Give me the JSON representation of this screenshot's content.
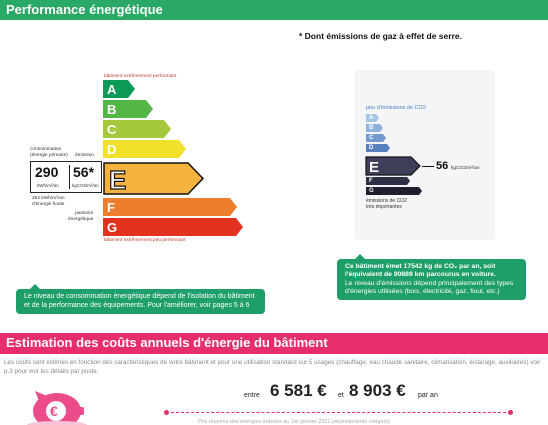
{
  "headers": {
    "energy": "Performance énergétique",
    "costs": "Estimation des coûts annuels d'énergie du bâtiment"
  },
  "footnote": "* Dont émissions de gaz à effet de serre.",
  "energy_label": {
    "top_text": "bâtiment extrêmement performant",
    "bottom_text": "bâtiment extrêmement peu performant",
    "classes": [
      "A",
      "B",
      "C",
      "D",
      "E",
      "F",
      "G"
    ],
    "current_class": "E",
    "consumption_label_1": "consommation",
    "consumption_label_2": "(énergie primaire)",
    "emission_label": "émission",
    "consumption_value": "290",
    "consumption_unit": "kWh/m²/an",
    "emission_value": "56*",
    "emission_unit": "kgCO2/m²/an",
    "final_energy_1": "262 kWh/m²/an",
    "final_energy_2": "d'énergie finale",
    "passoire_1": "passoire",
    "passoire_2": "énergétique"
  },
  "co2": {
    "title": "peu d'émissions de CO2",
    "bottom_1": "émissions de CO2",
    "bottom_2": "très importantes",
    "classes": [
      "A",
      "B",
      "C",
      "D",
      "E",
      "F",
      "G"
    ],
    "current_class": "E",
    "value": "56",
    "unit": "kgCO2/m²/an"
  },
  "callouts": {
    "left": "Le niveau de consommation énergétique dépend de l'isolation du bâtiment et de la performance des équipements. Pour l'améliorer, voir pages 5 à 6",
    "right_1": "Ce bâtiment émet 17542  kg de CO₂ par an, soit l'équivalent de 90889 km parcourus en voiture.",
    "right_2": "Le niveau d'émissions dépend principalement des types d'énergies utilisées (bois, électricité, gaz, fioul, etc.)"
  },
  "costs": {
    "description": "Les coûts sont estimés en fonction des caractéristiques de votre bâtiment et pour une utilisation standard sur 5 usages (chauffage, eau chaude sanitaire, climatisation, éclairage, auxiliaires) voir p.3 pour voir les détails par poste.",
    "between": "entre",
    "low": "6 581 €",
    "and": "et",
    "high": "8 903 €",
    "per_year": "par an",
    "faint_text": "Prix moyens des énergies indexés au 1er janvier 2021 (abonnements compris)"
  },
  "colors": {
    "A": "#0c9a57",
    "B": "#55b648",
    "C": "#a5c93d",
    "D": "#f2e12a",
    "E": "#f4b33f",
    "F": "#ee7e2c",
    "G": "#e2321f",
    "co2_A": "#a8c5e8",
    "co2_B": "#8fb1dd",
    "co2_C": "#7598cf",
    "co2_D": "#5a7fbf",
    "co2_E": "#3f3f5a",
    "co2_F": "#2e2e45",
    "co2_G": "#1f1f30",
    "green_header": "#2aa866",
    "pink_header": "#e62e6c",
    "callout": "#1e9e68"
  }
}
